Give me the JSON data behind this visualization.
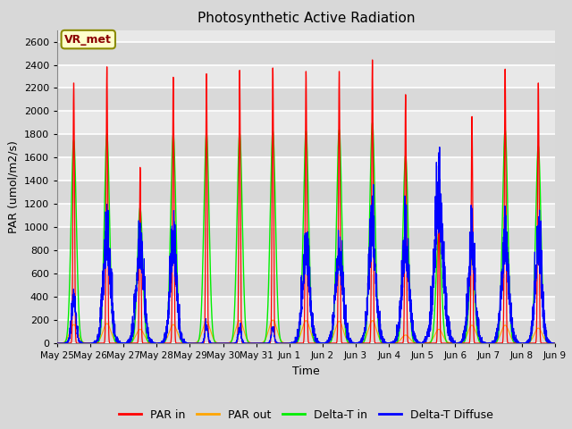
{
  "title": "Photosynthetic Active Radiation",
  "ylabel": "PAR (umol/m2/s)",
  "xlabel": "Time",
  "ylim": [
    0,
    2700
  ],
  "yticks": [
    0,
    200,
    400,
    600,
    800,
    1000,
    1200,
    1400,
    1600,
    1800,
    2000,
    2200,
    2400,
    2600
  ],
  "xtick_labels": [
    "May 25",
    "May 26",
    "May 27",
    "May 28",
    "May 29",
    "May 30",
    "May 31",
    "Jun 1",
    "Jun 2",
    "Jun 3",
    "Jun 4",
    "Jun 5",
    "Jun 6",
    "Jun 7",
    "Jun 8",
    "Jun 9"
  ],
  "annotation_text": "VR_met",
  "colors": {
    "PAR_in": "#FF0000",
    "PAR_out": "#FFA500",
    "Delta_T_in": "#00EE00",
    "Delta_T_Diffuse": "#0000FF"
  },
  "legend_labels": [
    "PAR in",
    "PAR out",
    "Delta-T in",
    "Delta-T Diffuse"
  ],
  "fig_bg": "#D8D8D8",
  "ax_bg": "#E8E8E8",
  "grid_color": "#FFFFFF",
  "total_days": 15,
  "ppd": 288,
  "daily_peaks_PAR_in": [
    2250,
    2390,
    1520,
    2300,
    2330,
    2360,
    2380,
    2350,
    2350,
    2450,
    2150,
    1260,
    1960,
    2370,
    2250
  ],
  "daily_peaks_PAR_out": [
    160,
    170,
    120,
    160,
    185,
    195,
    200,
    195,
    190,
    195,
    70,
    120,
    155,
    155,
    130
  ],
  "daily_peaks_Delta_T_in": [
    1750,
    1800,
    1170,
    1800,
    1810,
    1810,
    1830,
    1830,
    1840,
    1900,
    1620,
    950,
    760,
    1840,
    1700
  ],
  "daily_peaks_Delta_T_Diffuse": [
    300,
    700,
    650,
    670,
    120,
    100,
    100,
    620,
    620,
    750,
    650,
    950,
    680,
    670,
    670
  ],
  "dt_diffuse_widths": [
    0.06,
    0.1,
    0.1,
    0.09,
    0.04,
    0.04,
    0.04,
    0.1,
    0.1,
    0.1,
    0.1,
    0.12,
    0.09,
    0.1,
    0.09
  ]
}
